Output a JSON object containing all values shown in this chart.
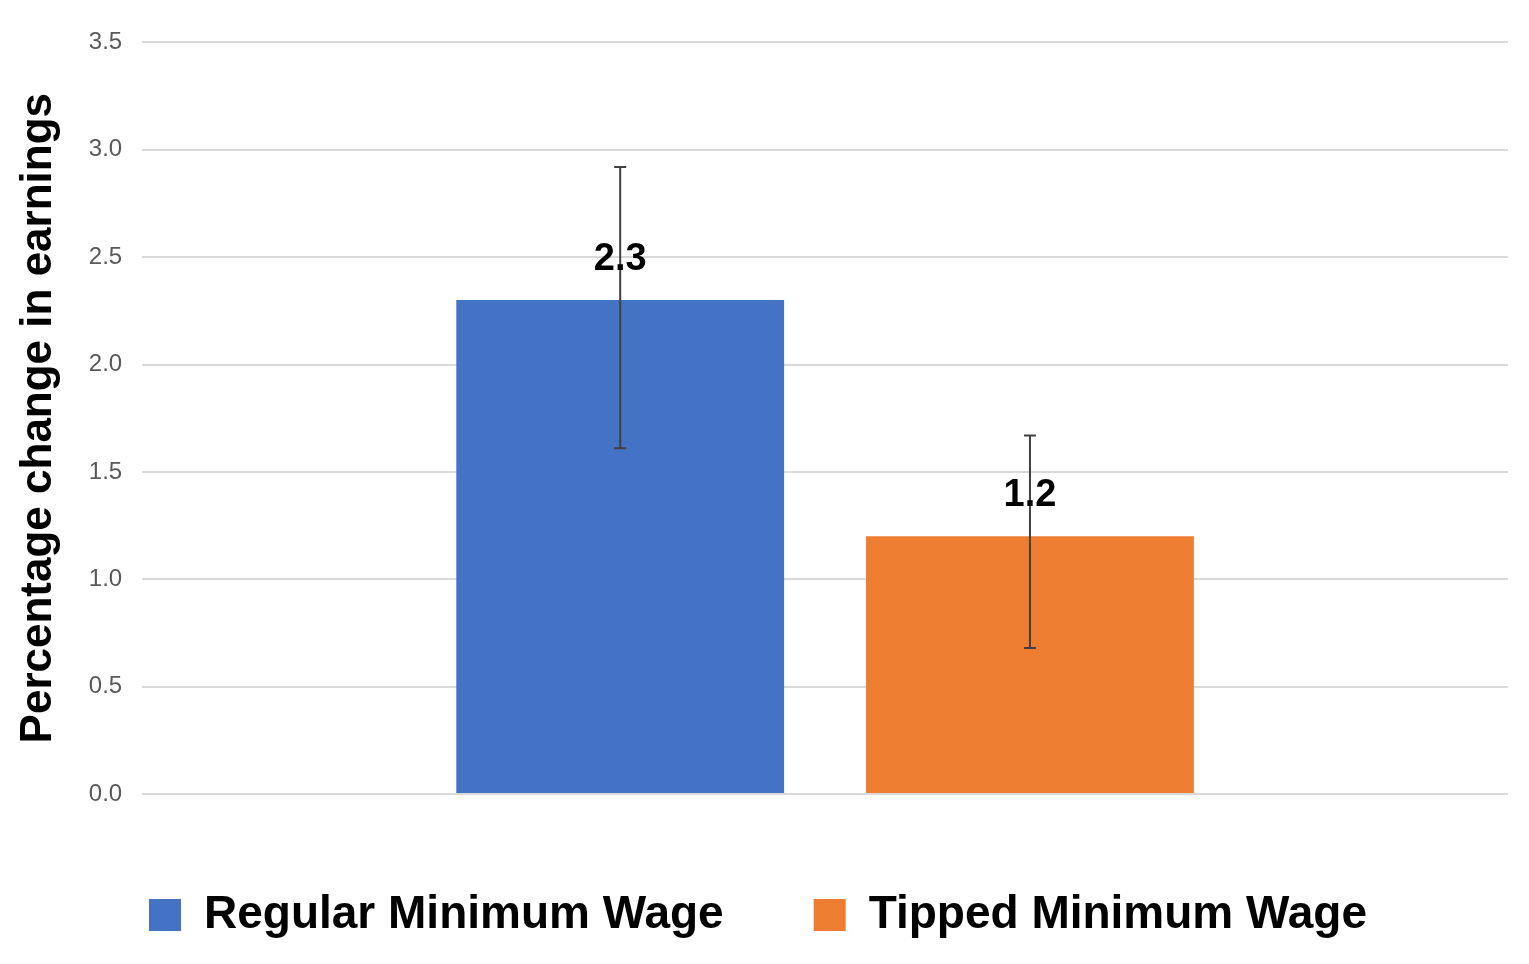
{
  "chart_data": {
    "type": "bar",
    "ylabel": "Percentage change in earnings",
    "categories": [
      null
    ],
    "series": [
      {
        "name": "Regular Minimum Wage",
        "color": "#4472c4",
        "values": [
          2.3
        ],
        "errors": [
          [
            1.61,
            2.92
          ]
        ]
      },
      {
        "name": "Tipped Minimum Wage",
        "color": "#ed7d31",
        "values": [
          1.2
        ],
        "errors": [
          [
            0.68,
            1.67
          ]
        ]
      }
    ],
    "ylim": [
      0,
      3.5
    ],
    "yticks": [
      {
        "value": 0,
        "label": "0.0"
      },
      {
        "value": 0.5,
        "label": "0.5"
      },
      {
        "value": 1,
        "label": "1.0"
      },
      {
        "value": 1.5,
        "label": "1.5"
      },
      {
        "value": 2,
        "label": "2.0"
      },
      {
        "value": 2.5,
        "label": "2.5"
      },
      {
        "value": 3,
        "label": "3.0"
      },
      {
        "value": 3.5,
        "label": "3.5"
      }
    ],
    "grid": "y",
    "legend": "bottom",
    "data_labels": true,
    "tick_labels": "y"
  }
}
